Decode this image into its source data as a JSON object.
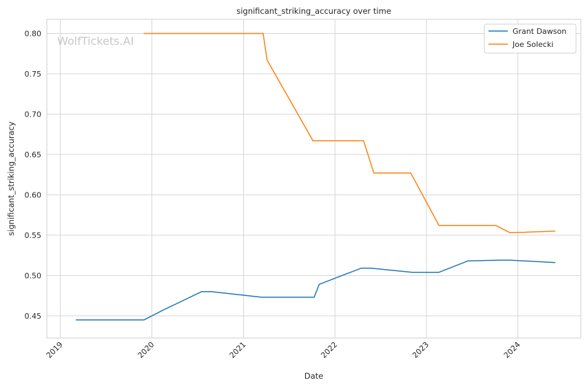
{
  "chart_data": {
    "type": "line",
    "title": "significant_striking_accuracy over time",
    "xlabel": "Date",
    "ylabel": "significant_striking_accuracy",
    "watermark": "WolfTickets.AI",
    "xlim": [
      "2018-11-08",
      "2024-09-08"
    ],
    "ylim": [
      0.4225,
      0.8175
    ],
    "x_ticks": [
      "2019",
      "2020",
      "2021",
      "2022",
      "2023",
      "2024"
    ],
    "y_ticks": [
      "0.45",
      "0.50",
      "0.55",
      "0.60",
      "0.65",
      "0.70",
      "0.75",
      "0.80"
    ],
    "grid": true,
    "legend_position": "top-right",
    "series": [
      {
        "name": "Grant Dawson",
        "color": "#1f77b4",
        "points": [
          [
            "2019-03-05",
            0.445
          ],
          [
            "2019-12-01",
            0.445
          ],
          [
            "2020-02-15",
            0.457
          ],
          [
            "2020-07-18",
            0.48
          ],
          [
            "2020-08-25",
            0.48
          ],
          [
            "2021-03-15",
            0.473
          ],
          [
            "2021-10-10",
            0.473
          ],
          [
            "2021-10-30",
            0.489
          ],
          [
            "2022-04-15",
            0.509
          ],
          [
            "2022-05-25",
            0.509
          ],
          [
            "2022-11-05",
            0.504
          ],
          [
            "2023-02-20",
            0.504
          ],
          [
            "2023-06-15",
            0.518
          ],
          [
            "2023-10-20",
            0.519
          ],
          [
            "2023-12-01",
            0.519
          ],
          [
            "2024-05-28",
            0.516
          ]
        ]
      },
      {
        "name": "Joe Solecki",
        "color": "#ff7f0e",
        "points": [
          [
            "2019-12-01",
            0.8
          ],
          [
            "2021-03-20",
            0.8
          ],
          [
            "2021-04-05",
            0.767
          ],
          [
            "2021-10-05",
            0.667
          ],
          [
            "2022-04-25",
            0.667
          ],
          [
            "2022-06-05",
            0.627
          ],
          [
            "2022-10-30",
            0.627
          ],
          [
            "2023-02-20",
            0.562
          ],
          [
            "2023-10-05",
            0.562
          ],
          [
            "2023-12-01",
            0.553
          ],
          [
            "2024-05-28",
            0.555
          ]
        ]
      }
    ]
  }
}
